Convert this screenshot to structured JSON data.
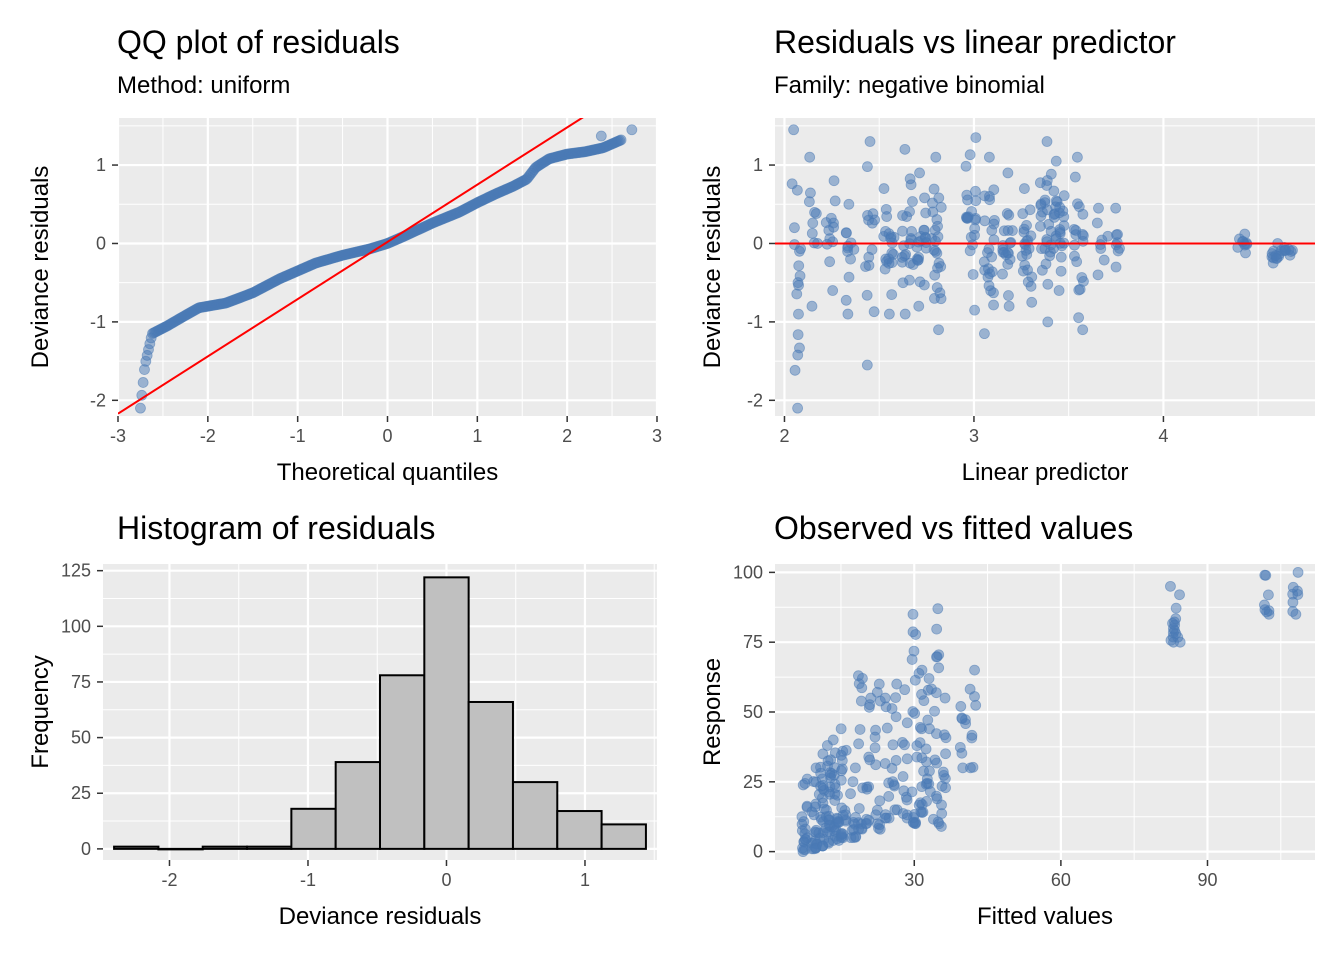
{
  "colors": {
    "panel_bg": "#ebebeb",
    "grid": "#ffffff",
    "point": "#4a7ab5",
    "ref_line": "#ff0000",
    "hist_fill": "#c0c0c0",
    "hist_stroke": "#000000"
  },
  "chart_data": [
    {
      "id": "qq",
      "type": "scatter",
      "title": "QQ plot of residuals",
      "subtitle": "Method: uniform",
      "xlabel": "Theoretical quantiles",
      "ylabel": "Deviance residuals",
      "xlim": [
        -3,
        3
      ],
      "ylim": [
        -2.2,
        1.6
      ],
      "xticks": [
        -3,
        -2,
        -1,
        0,
        1,
        2,
        3
      ],
      "xtick_labels": [
        "-3",
        "-2",
        "-1",
        "0",
        "1",
        "2",
        "3"
      ],
      "yticks": [
        -2,
        -1,
        0,
        1
      ],
      "ytick_labels": [
        "-2",
        "-1",
        "0",
        "1"
      ],
      "grid": true,
      "reference_line": {
        "intercept": 0.02,
        "slope": 0.73
      },
      "qq_profile": {
        "x": [
          -2.75,
          -2.7,
          -2.62,
          -2.45,
          -2.3,
          -2.1,
          -1.8,
          -1.5,
          -1.2,
          -1.0,
          -0.8,
          -0.5,
          -0.2,
          0.0,
          0.2,
          0.5,
          0.8,
          1.0,
          1.2,
          1.4,
          1.55,
          1.65,
          1.8,
          2.0,
          2.2,
          2.4,
          2.6
        ],
        "y": [
          -2.1,
          -1.55,
          -1.15,
          -1.05,
          -0.95,
          -0.82,
          -0.76,
          -0.63,
          -0.45,
          -0.35,
          -0.25,
          -0.15,
          -0.07,
          0.0,
          0.1,
          0.26,
          0.4,
          0.52,
          0.63,
          0.73,
          0.82,
          0.97,
          1.08,
          1.14,
          1.17,
          1.22,
          1.32
        ]
      },
      "extra_points": [
        [
          2.72,
          1.45
        ],
        [
          2.38,
          1.37
        ]
      ],
      "n_points": 360
    },
    {
      "id": "resid_vs_lp",
      "type": "scatter",
      "title": "Residuals vs linear predictor",
      "subtitle": "Family: negative binomial",
      "xlabel": "Linear predictor",
      "ylabel": "Deviance residuals",
      "xlim": [
        1.95,
        4.8
      ],
      "ylim": [
        -2.2,
        1.6
      ],
      "xticks": [
        2,
        3,
        4
      ],
      "xtick_labels": [
        "2",
        "3",
        "4"
      ],
      "yticks": [
        -2,
        -1,
        0,
        1
      ],
      "ytick_labels": [
        "-2",
        "-1",
        "0",
        "1"
      ],
      "grid": true,
      "reference_line": {
        "intercept": 0,
        "slope": 0
      },
      "groups": [
        {
          "x": 2.06,
          "n": 18,
          "lo": -2.1,
          "hi": 1.45
        },
        {
          "x": 2.15,
          "n": 10,
          "lo": -0.8,
          "hi": 1.1
        },
        {
          "x": 2.25,
          "n": 12,
          "lo": -0.6,
          "hi": 0.8
        },
        {
          "x": 2.35,
          "n": 12,
          "lo": -0.9,
          "hi": 0.5
        },
        {
          "x": 2.45,
          "n": 14,
          "lo": -1.55,
          "hi": 1.3
        },
        {
          "x": 2.55,
          "n": 20,
          "lo": -0.9,
          "hi": 0.7
        },
        {
          "x": 2.65,
          "n": 22,
          "lo": -0.9,
          "hi": 1.2
        },
        {
          "x": 2.72,
          "n": 20,
          "lo": -0.8,
          "hi": 0.9
        },
        {
          "x": 2.8,
          "n": 24,
          "lo": -1.1,
          "hi": 1.1
        },
        {
          "x": 2.98,
          "n": 22,
          "lo": -0.85,
          "hi": 1.35
        },
        {
          "x": 3.08,
          "n": 24,
          "lo": -1.15,
          "hi": 1.1
        },
        {
          "x": 3.18,
          "n": 20,
          "lo": -0.8,
          "hi": 0.9
        },
        {
          "x": 3.28,
          "n": 22,
          "lo": -0.75,
          "hi": 0.7
        },
        {
          "x": 3.38,
          "n": 26,
          "lo": -1.0,
          "hi": 1.3
        },
        {
          "x": 3.45,
          "n": 26,
          "lo": -0.6,
          "hi": 1.05
        },
        {
          "x": 3.55,
          "n": 20,
          "lo": -1.1,
          "hi": 1.1
        },
        {
          "x": 3.68,
          "n": 8,
          "lo": -0.4,
          "hi": 0.45
        },
        {
          "x": 3.75,
          "n": 8,
          "lo": -0.3,
          "hi": 0.45
        },
        {
          "x": 4.42,
          "n": 10,
          "lo": -0.12,
          "hi": 0.12
        },
        {
          "x": 4.6,
          "n": 12,
          "lo": -0.25,
          "hi": 0.0
        },
        {
          "x": 4.66,
          "n": 8,
          "lo": -0.15,
          "hi": -0.05
        }
      ]
    },
    {
      "id": "hist",
      "type": "bar",
      "title": "Histogram of residuals",
      "xlabel": "Deviance residuals",
      "ylabel": "Frequency",
      "xlim": [
        -2.48,
        1.52
      ],
      "ylim": [
        -5,
        128
      ],
      "xticks": [
        -2,
        -1,
        0,
        1
      ],
      "xtick_labels": [
        "-2",
        "-1",
        "0",
        "1"
      ],
      "yticks": [
        0,
        25,
        50,
        75,
        100,
        125
      ],
      "ytick_labels": [
        "0",
        "25",
        "50",
        "75",
        "100",
        "125"
      ],
      "grid": true,
      "bins": [
        {
          "x0": -2.4,
          "x1": -2.08,
          "count": 1
        },
        {
          "x0": -2.08,
          "x1": -1.76,
          "count": 0
        },
        {
          "x0": -1.76,
          "x1": -1.44,
          "count": 1
        },
        {
          "x0": -1.44,
          "x1": -1.12,
          "count": 1
        },
        {
          "x0": -1.12,
          "x1": -0.8,
          "count": 18
        },
        {
          "x0": -0.8,
          "x1": -0.48,
          "count": 39
        },
        {
          "x0": -0.48,
          "x1": -0.16,
          "count": 78
        },
        {
          "x0": -0.16,
          "x1": 0.16,
          "count": 122
        },
        {
          "x0": 0.16,
          "x1": 0.48,
          "count": 66
        },
        {
          "x0": 0.48,
          "x1": 0.8,
          "count": 30
        },
        {
          "x0": 0.8,
          "x1": 1.12,
          "count": 17
        },
        {
          "x0": 1.12,
          "x1": 1.44,
          "count": 11
        }
      ]
    },
    {
      "id": "obs_vs_fit",
      "type": "scatter",
      "title": "Observed vs fitted values",
      "xlabel": "Fitted values",
      "ylabel": "Response",
      "xlim": [
        1.5,
        112
      ],
      "ylim": [
        -3,
        103
      ],
      "xticks": [
        30,
        60,
        90
      ],
      "xtick_labels": [
        "30",
        "60",
        "90"
      ],
      "yticks": [
        0,
        25,
        50,
        75,
        100
      ],
      "ytick_labels": [
        "0",
        "25",
        "50",
        "75",
        "100"
      ],
      "grid": true,
      "groups": [
        {
          "x": 7.5,
          "n": 20,
          "lo": 0,
          "hi": 26
        },
        {
          "x": 9.5,
          "n": 20,
          "lo": 1,
          "hi": 30
        },
        {
          "x": 11,
          "n": 22,
          "lo": 2,
          "hi": 35
        },
        {
          "x": 12.5,
          "n": 24,
          "lo": 3,
          "hi": 38
        },
        {
          "x": 14,
          "n": 22,
          "lo": 4,
          "hi": 40
        },
        {
          "x": 15.5,
          "n": 20,
          "lo": 5,
          "hi": 44
        },
        {
          "x": 17.5,
          "n": 12,
          "lo": 5,
          "hi": 30
        },
        {
          "x": 19,
          "n": 14,
          "lo": 8,
          "hi": 63
        },
        {
          "x": 20.5,
          "n": 12,
          "lo": 10,
          "hi": 55
        },
        {
          "x": 22.5,
          "n": 14,
          "lo": 8,
          "hi": 60
        },
        {
          "x": 24.5,
          "n": 10,
          "lo": 12,
          "hi": 55
        },
        {
          "x": 26,
          "n": 12,
          "lo": 15,
          "hi": 60
        },
        {
          "x": 28,
          "n": 12,
          "lo": 12,
          "hi": 58
        },
        {
          "x": 30,
          "n": 18,
          "lo": 10,
          "hi": 85
        },
        {
          "x": 31.5,
          "n": 16,
          "lo": 14,
          "hi": 65
        },
        {
          "x": 33,
          "n": 14,
          "lo": 18,
          "hi": 62
        },
        {
          "x": 34.5,
          "n": 16,
          "lo": 10,
          "hi": 87
        },
        {
          "x": 36,
          "n": 12,
          "lo": 9,
          "hi": 55
        },
        {
          "x": 40,
          "n": 8,
          "lo": 30,
          "hi": 52
        },
        {
          "x": 42,
          "n": 8,
          "lo": 30,
          "hi": 65
        },
        {
          "x": 83,
          "n": 10,
          "lo": 75,
          "hi": 95
        },
        {
          "x": 84,
          "n": 6,
          "lo": 75,
          "hi": 92
        },
        {
          "x": 102,
          "n": 8,
          "lo": 85,
          "hi": 99
        },
        {
          "x": 108,
          "n": 8,
          "lo": 85,
          "hi": 100
        }
      ]
    }
  ]
}
